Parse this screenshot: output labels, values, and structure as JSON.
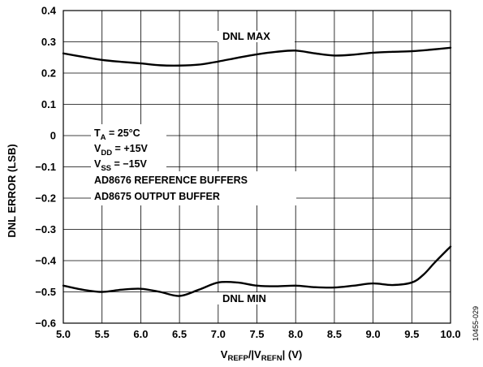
{
  "chart_data": {
    "type": "line",
    "xlabel": {
      "main": "V",
      "sub1": "REFP",
      "mid": "/|V",
      "sub2": "REFN",
      "tail": "| (V)"
    },
    "ylabel": "DNL ERROR (LSB)",
    "xlim": [
      5.0,
      10.0
    ],
    "ylim": [
      -0.6,
      0.4
    ],
    "xticks": [
      5.0,
      5.5,
      6.0,
      6.5,
      7.0,
      7.5,
      8.0,
      8.5,
      9.0,
      9.5,
      10.0
    ],
    "xtick_labels": [
      "5.0",
      "5.5",
      "6.0",
      "6.5",
      "7.0",
      "7.5",
      "8.0",
      "8.5",
      "9.0",
      "9.5",
      "10.0"
    ],
    "yticks": [
      0.4,
      0.3,
      0.2,
      0.1,
      0,
      -0.1,
      -0.2,
      -0.3,
      -0.4,
      -0.5,
      -0.6
    ],
    "ytick_labels": [
      "0.4",
      "0.3",
      "0.2",
      "0.1",
      "0",
      "−0.1",
      "−0.2",
      "−0.3",
      "−0.4",
      "−0.5",
      "−0.6"
    ],
    "grid": true,
    "series": [
      {
        "name": "DNL MAX",
        "x": [
          5.0,
          5.25,
          5.5,
          5.75,
          6.0,
          6.25,
          6.5,
          6.75,
          7.0,
          7.25,
          7.5,
          7.75,
          8.0,
          8.25,
          8.5,
          8.75,
          9.0,
          9.25,
          9.5,
          9.75,
          10.0
        ],
        "y": [
          0.263,
          0.252,
          0.242,
          0.236,
          0.231,
          0.225,
          0.224,
          0.227,
          0.237,
          0.249,
          0.26,
          0.268,
          0.272,
          0.263,
          0.256,
          0.259,
          0.265,
          0.268,
          0.27,
          0.275,
          0.281
        ]
      },
      {
        "name": "DNL MIN",
        "x": [
          5.0,
          5.25,
          5.5,
          5.75,
          6.0,
          6.25,
          6.5,
          6.75,
          7.0,
          7.25,
          7.5,
          7.75,
          8.0,
          8.25,
          8.5,
          8.75,
          9.0,
          9.25,
          9.5,
          9.65,
          9.8,
          10.0
        ],
        "y": [
          -0.48,
          -0.493,
          -0.5,
          -0.493,
          -0.49,
          -0.5,
          -0.513,
          -0.493,
          -0.47,
          -0.47,
          -0.48,
          -0.482,
          -0.48,
          -0.485,
          -0.486,
          -0.48,
          -0.473,
          -0.478,
          -0.47,
          -0.445,
          -0.405,
          -0.355
        ]
      }
    ],
    "annotations": {
      "ta": {
        "main": "T",
        "sub": "A",
        "rest": " = 25°C"
      },
      "vdd": {
        "main": "V",
        "sub": "DD",
        "rest": " = +15V"
      },
      "vss": {
        "main": "V",
        "sub": "SS",
        "rest": " = −15V"
      },
      "ref_buffers": "AD8676 REFERENCE BUFFERS",
      "out_buffer": "AD8675 OUTPUT BUFFER"
    },
    "figure_id": "10455-029"
  }
}
